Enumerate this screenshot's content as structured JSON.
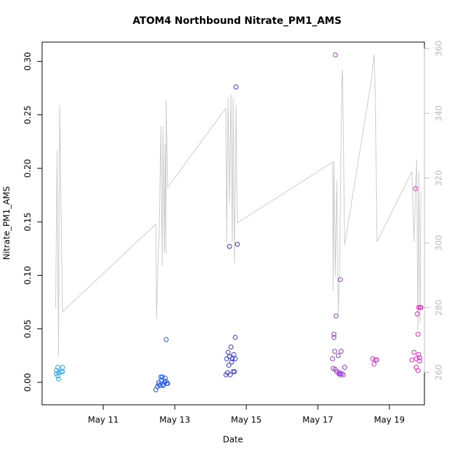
{
  "chart_data": {
    "type": "scatter",
    "title": "ATOM4 Northbound Nitrate_PM1_AMS",
    "x_label": "Date",
    "y_label": "Nitrate_PM1_AMS",
    "xlim": [
      9.29,
      19.98
    ],
    "xticks": [
      {
        "value": 11,
        "label": "May 11"
      },
      {
        "value": 13,
        "label": "May 13"
      },
      {
        "value": 15,
        "label": "May 15"
      },
      {
        "value": 17,
        "label": "May 17"
      },
      {
        "value": 19,
        "label": "May 19"
      }
    ],
    "ylim": [
      -0.021,
      0.318
    ],
    "yticks": [
      {
        "value": 0,
        "label": "0.00"
      },
      {
        "value": 0.05,
        "label": "0.05"
      },
      {
        "value": 0.1,
        "label": "0.10"
      },
      {
        "value": 0.15,
        "label": "0.15"
      },
      {
        "value": 0.2,
        "label": "0.20"
      },
      {
        "value": 0.25,
        "label": "0.25"
      },
      {
        "value": 0.3,
        "label": "0.30"
      }
    ],
    "y2lim": [
      250,
      362
    ],
    "y2ticks": [
      260,
      280,
      300,
      320,
      340,
      360
    ],
    "y2_color": "#bbbbbb",
    "series": [
      {
        "color": "#22aaee",
        "x": [
          9.69,
          9.73,
          9.76,
          9.73,
          9.75,
          9.82,
          9.86,
          9.86,
          9.69
        ],
        "values": [
          0.011,
          0.014,
          0.009,
          0.006,
          0.003,
          0.01,
          0.014,
          0.01,
          0.008
        ]
      },
      {
        "color": "#2255ee",
        "x": [
          12.47,
          12.51,
          12.55,
          12.59,
          12.61,
          12.63,
          12.65,
          12.69,
          12.71,
          12.73,
          12.75,
          12.78,
          12.76,
          12.8,
          12.55,
          12.67
        ],
        "values": [
          -0.007,
          -0.004,
          0.0,
          -0.003,
          0.005,
          0.002,
          0.005,
          -0.002,
          0.0,
          0.004,
          0.001,
          -0.001,
          0.04,
          -0.001,
          -0.002,
          -0.003
        ]
      },
      {
        "color": "#3333dd",
        "x": [
          14.53,
          14.75,
          14.71,
          14.69,
          14.45,
          14.49,
          14.53,
          14.57,
          14.61,
          14.65,
          14.69,
          14.47,
          14.51,
          14.55,
          14.59,
          14.63,
          14.67,
          14.43
        ],
        "values": [
          0.127,
          0.129,
          0.276,
          0.042,
          0.022,
          0.028,
          0.024,
          0.033,
          0.022,
          0.026,
          0.022,
          0.009,
          0.016,
          0.007,
          0.019,
          0.01,
          0.01,
          0.007
        ]
      },
      {
        "color": "#9933dd",
        "x": [
          17.49,
          17.51,
          17.63,
          17.45,
          17.45,
          17.47,
          17.65,
          17.41,
          17.57,
          17.43,
          17.49,
          17.53,
          17.59,
          17.63,
          17.67,
          17.71,
          17.75,
          17.61
        ],
        "values": [
          0.306,
          0.062,
          0.096,
          0.045,
          0.042,
          0.029,
          0.029,
          0.022,
          0.025,
          0.013,
          0.012,
          0.01,
          0.008,
          0.007,
          0.008,
          0.007,
          0.014,
          0.009
        ]
      },
      {
        "color": "#cc33cc",
        "x": [
          18.53,
          18.57,
          18.61,
          18.65
        ],
        "values": [
          0.022,
          0.017,
          0.021,
          0.021
        ]
      },
      {
        "color": "#ee22cc",
        "x": [
          19.73,
          19.78,
          19.8,
          19.82,
          19.86,
          19.88,
          19.69,
          19.82,
          19.63,
          19.75,
          19.84,
          19.75,
          19.8,
          19.84
        ],
        "values": [
          0.181,
          0.064,
          0.045,
          0.07,
          0.07,
          0.07,
          0.028,
          0.026,
          0.021,
          0.022,
          0.023,
          0.014,
          0.011,
          0.02
        ]
      },
      {
        "type": "line",
        "axis": "y2",
        "color": "#cccccc",
        "x": [
          9.67,
          9.71,
          9.75,
          9.78,
          9.86,
          12.47,
          12.49,
          12.53,
          12.57,
          12.61,
          12.65,
          12.67,
          12.71,
          12.73,
          12.75,
          12.76,
          12.8,
          14.43,
          14.45,
          14.49,
          14.53,
          14.57,
          14.61,
          14.63,
          14.67,
          14.71,
          14.75,
          17.41,
          17.43,
          17.45,
          17.49,
          17.53,
          17.57,
          17.61,
          17.67,
          17.69,
          17.75,
          18.51,
          18.57,
          18.61,
          18.65,
          19.63,
          19.69,
          19.76,
          19.8,
          19.82,
          19.86,
          19.88
        ],
        "values": [
          279.7,
          328.5,
          265,
          342.6,
          278.7,
          305.8,
          276.5,
          292.8,
          305.3,
          336.1,
          292.8,
          336.1,
          297.1,
          330.7,
          296.7,
          344.2,
          317.1,
          341.6,
          300.3,
          344.8,
          312.3,
          345.9,
          300.3,
          344.8,
          293.8,
          342.6,
          306.2,
          324.9,
          285.2,
          325.3,
          289.5,
          319.2,
          277.6,
          292.8,
          350.2,
          353.5,
          299.3,
          351.3,
          358.3,
          344.8,
          300.3,
          322.0,
          300.3,
          325.7,
          273.2,
          321.8,
          275.4,
          315.5
        ]
      }
    ]
  }
}
